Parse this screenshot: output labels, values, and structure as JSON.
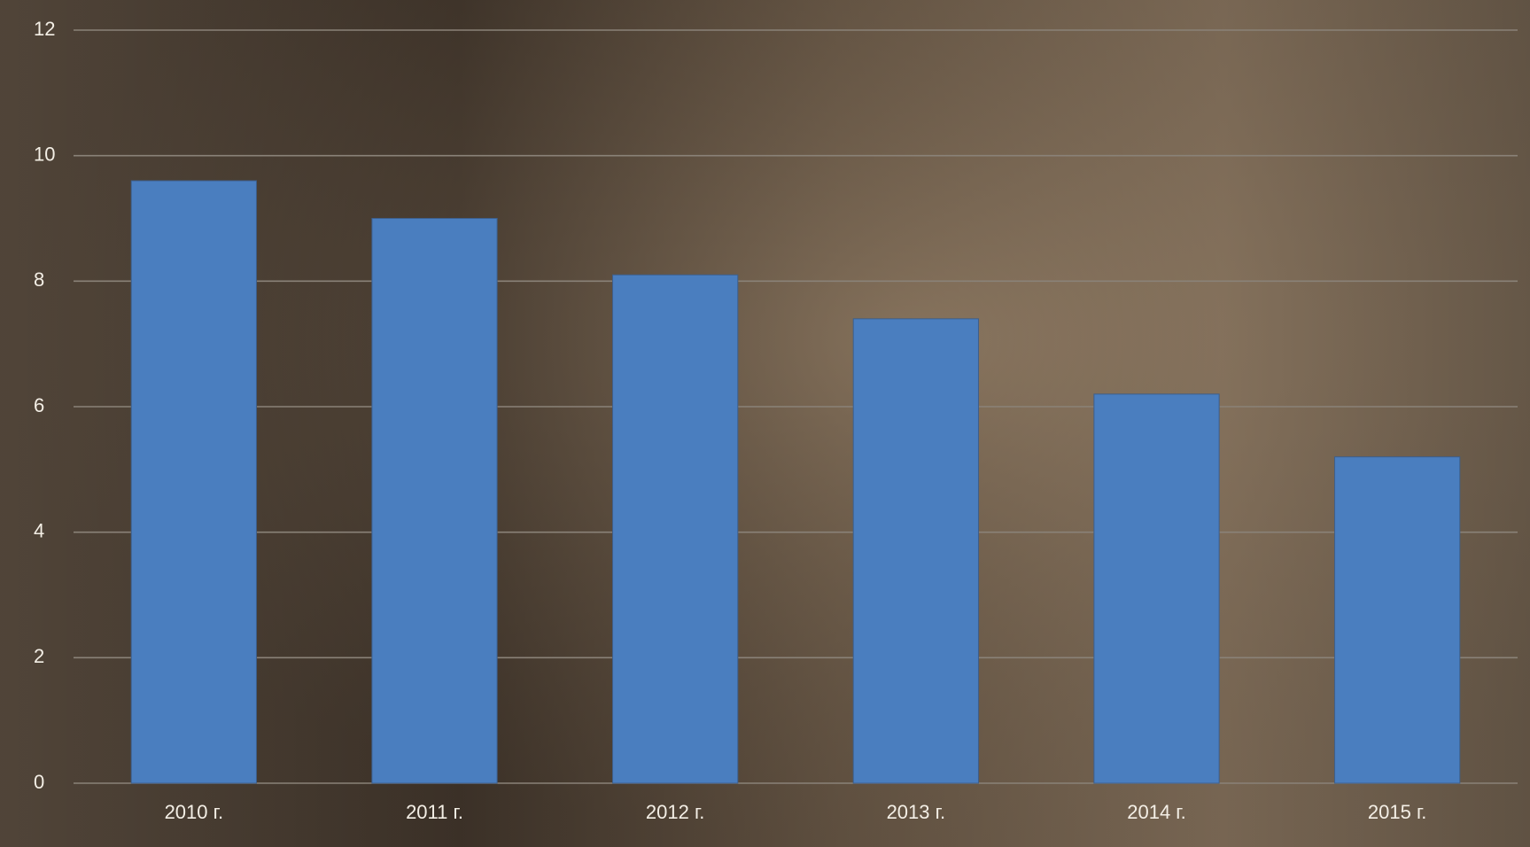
{
  "chart_data": {
    "type": "bar",
    "categories": [
      "2010 г.",
      "2011 г.",
      "2012 г.",
      "2013 г.",
      "2014 г.",
      "2015 г."
    ],
    "values": [
      9.6,
      9.0,
      8.1,
      7.4,
      6.2,
      5.2
    ],
    "color": "#4a7ebf",
    "ylim": [
      0,
      12
    ],
    "yticks": [
      0,
      2,
      4,
      6,
      8,
      10,
      12
    ],
    "grid": true
  }
}
